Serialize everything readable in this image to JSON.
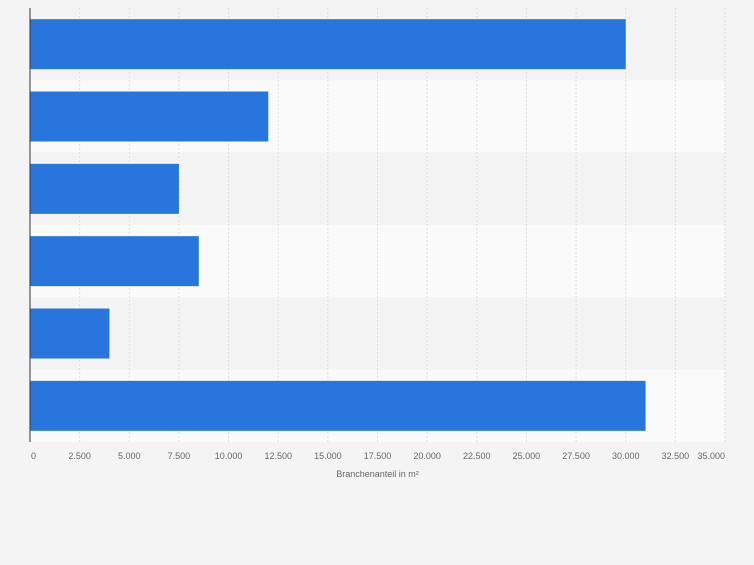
{
  "chart_data": {
    "type": "bar",
    "orientation": "horizontal",
    "categories": [
      "",
      "",
      "",
      "",
      "",
      ""
    ],
    "values": [
      30000,
      12000,
      7500,
      8500,
      4000,
      31000
    ],
    "title": "",
    "xlabel": "Branchenanteil in m²",
    "ylabel": "",
    "xlim": [
      0,
      35000
    ],
    "xticks": [
      0,
      2500,
      5000,
      7500,
      10000,
      12500,
      15000,
      17500,
      20000,
      22500,
      25000,
      27500,
      30000,
      32500,
      35000
    ],
    "xtick_labels": [
      "0",
      "2.500",
      "5.000",
      "7.500",
      "10.000",
      "12.500",
      "15.000",
      "17.500",
      "20.000",
      "22.500",
      "25.000",
      "27.500",
      "30.000",
      "32.500",
      "35.000"
    ],
    "grid": true,
    "colors": {
      "bar": "#2876dd",
      "band_dark": "#f4f4f4",
      "band_light": "#fafafa",
      "grid": "#dedede",
      "axis": "#333333",
      "text": "#666666"
    }
  }
}
